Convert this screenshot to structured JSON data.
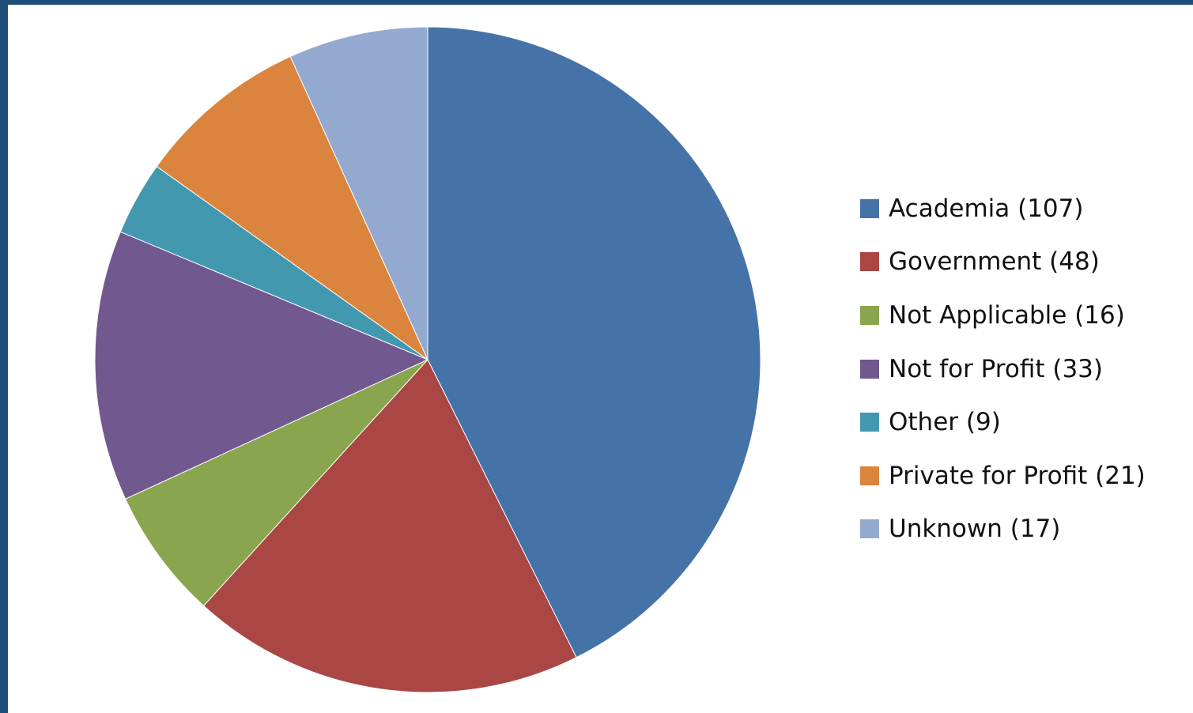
{
  "chart_data": {
    "type": "pie",
    "title": "",
    "slices": [
      {
        "label": "Academia (107)",
        "value": 107,
        "color": "#4572a7"
      },
      {
        "label": "Government (48)",
        "value": 48,
        "color": "#aa4643"
      },
      {
        "label": "Not Applicable (16)",
        "value": 16,
        "color": "#89a54e"
      },
      {
        "label": "Not for Profit (33)",
        "value": 33,
        "color": "#71588f"
      },
      {
        "label": "Other (9)",
        "value": 9,
        "color": "#4198af"
      },
      {
        "label": "Private for Profit (21)",
        "value": 21,
        "color": "#db843d"
      },
      {
        "label": "Unknown (17)",
        "value": 17,
        "color": "#93a9cf"
      }
    ],
    "legend_position": "right",
    "start_angle": "top",
    "direction": "clockwise"
  }
}
